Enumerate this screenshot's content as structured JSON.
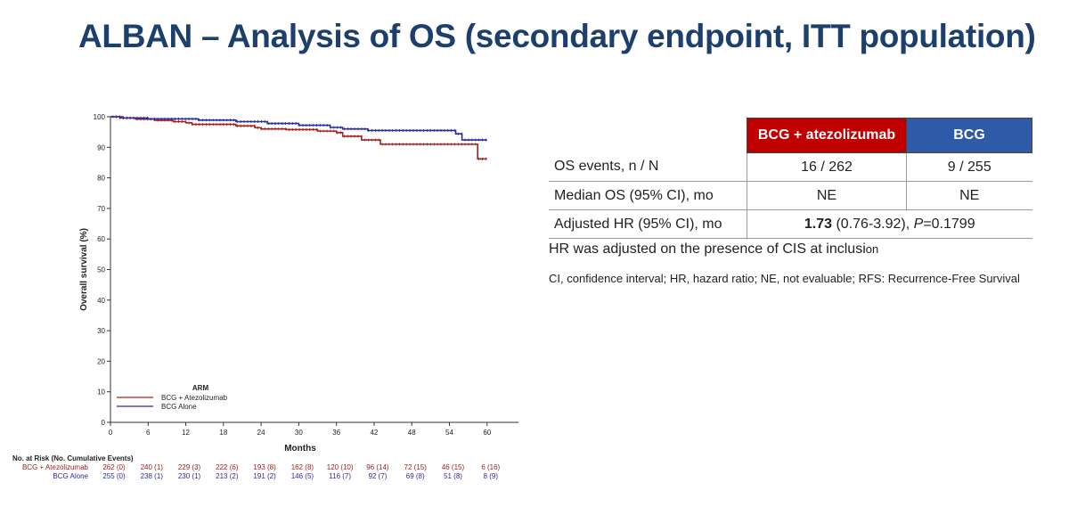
{
  "title": "ALBAN – Analysis of OS (secondary endpoint, ITT population)",
  "table": {
    "headers": [
      "",
      "BCG + atezolizumab",
      "BCG"
    ],
    "rows": [
      {
        "label": "OS events, n / N",
        "arm1": "16 / 262",
        "arm2": "9 / 255"
      },
      {
        "label": "Median OS (95% CI), mo",
        "arm1": "NE",
        "arm2": "NE"
      },
      {
        "label": "Adjusted HR (95% CI), mo",
        "hr_bold": "1.73",
        "hr_ci": " (0.76-3.92), ",
        "hr_p_label": "P",
        "hr_p_value": "=0.1799"
      }
    ],
    "header_colors": {
      "arm1": "#c00000",
      "arm2": "#2f5aa8"
    }
  },
  "notes": {
    "adjusted": "HR was adjusted on the presence of CIS at inclusi",
    "adjusted_tail": "on",
    "abbreviations": "CI, confidence interval; HR, hazard ratio; NE, not evaluable; RFS: Recurrence-Free Survival"
  },
  "chart_data": {
    "type": "line",
    "step": true,
    "xlabel": "Months",
    "ylabel": "Overall survival (%)",
    "xlim": [
      0,
      65
    ],
    "ylim": [
      0,
      100
    ],
    "x_ticks": [
      0,
      6,
      12,
      18,
      24,
      30,
      36,
      42,
      48,
      54,
      60
    ],
    "y_ticks": [
      0,
      10,
      20,
      30,
      40,
      50,
      60,
      70,
      80,
      90,
      100
    ],
    "legend": {
      "title": "ARM",
      "placement": "bottom-left"
    },
    "series": [
      {
        "name": "BCG + Atezolizumab",
        "color": "#a32020",
        "x": [
          0,
          2,
          4,
          7,
          10,
          12,
          13,
          20,
          23,
          24,
          28,
          33,
          36,
          37,
          40,
          43,
          58,
          58.5,
          60
        ],
        "y": [
          100,
          99.6,
          99.2,
          98.8,
          98.4,
          98,
          97.5,
          97,
          96.4,
          96,
          95.8,
          95.3,
          94.8,
          93.6,
          92.4,
          91,
          91,
          86.2,
          86.2
        ]
      },
      {
        "name": "BCG Alone",
        "color": "#2b2b9a",
        "x": [
          0,
          1.5,
          6,
          14,
          20,
          25,
          30,
          35,
          37,
          41,
          55,
          56,
          60
        ],
        "y": [
          100,
          99.6,
          99.3,
          98.9,
          98.4,
          97.8,
          97.2,
          96.5,
          96,
          95.5,
          94.4,
          92.4,
          92.4
        ]
      }
    ],
    "at_risk": {
      "header": "No. at Risk (No. Cumulative Events)",
      "rows": [
        {
          "name": "BCG + Atezolizumab",
          "color": "#a32020",
          "values": [
            "262 (0)",
            "240 (1)",
            "229 (3)",
            "222 (6)",
            "193 (8)",
            "162 (8)",
            "120 (10)",
            "96 (14)",
            "72 (15)",
            "46 (15)",
            "6 (16)"
          ]
        },
        {
          "name": "BCG Alone",
          "color": "#2b2b9a",
          "values": [
            "255 (0)",
            "238 (1)",
            "230 (1)",
            "213 (2)",
            "191 (2)",
            "146 (5)",
            "116 (7)",
            "92 (7)",
            "69 (8)",
            "51 (8)",
            "8 (9)"
          ]
        }
      ]
    }
  }
}
